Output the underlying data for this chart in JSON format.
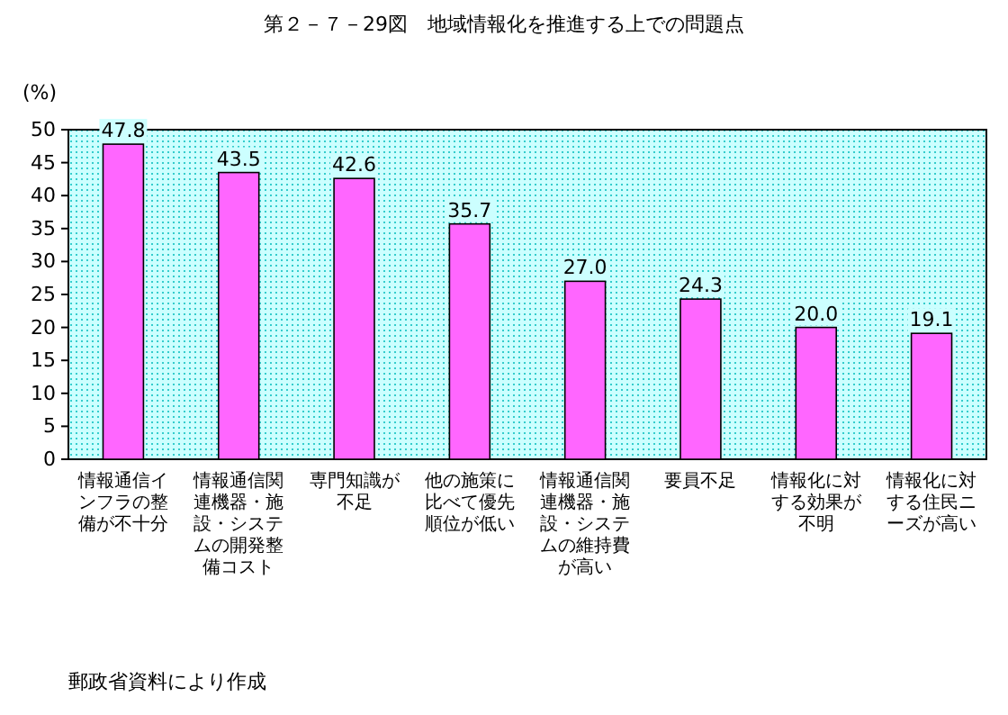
{
  "chart_data": {
    "type": "bar",
    "title": "第２－７－29図　地域情報化を推進する上での問題点",
    "ylabel": "(%)",
    "categories": [
      "情報通信インフラの整備が不十分",
      "情報通信関連機器・施設・システムの開発整備コスト",
      "専門知識が不足",
      "他の施策に比べて優先順位が低い",
      "情報通信関連機器・施設・システムの維持費が高い",
      "要員不足",
      "情報化に対する効果が不明",
      "情報化に対する住民ニーズが高い"
    ],
    "values": [
      47.8,
      43.5,
      42.6,
      35.7,
      27.0,
      24.3,
      20.0,
      19.1
    ],
    "value_labels": [
      "47.8",
      "43.5",
      "42.6",
      "35.7",
      "27.0",
      "24.3",
      "20.0",
      "19.1"
    ],
    "color": "#ff66ff",
    "ylim": [
      0,
      50
    ],
    "yticks": [
      0,
      5,
      10,
      15,
      20,
      25,
      30,
      35,
      40,
      45,
      50
    ],
    "annotations": [
      "郵政省資料により作成"
    ]
  }
}
